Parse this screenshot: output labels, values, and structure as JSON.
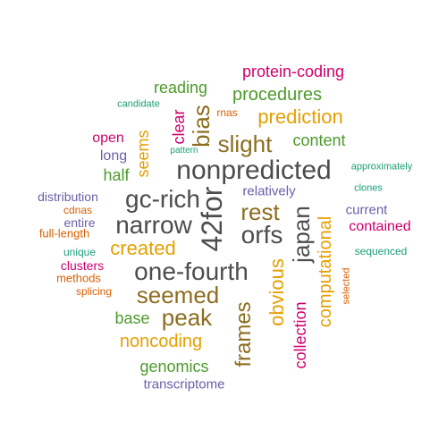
{
  "palette": {
    "dark_gray": "#4d4d4d",
    "brown": "#8c6d1f",
    "gold": "#e69f00",
    "green": "#4d9a2a",
    "magenta": "#d0006f",
    "orange_red": "#d95f02",
    "teal": "#1b9e77",
    "slate_blue": "#6a5fa8"
  },
  "words": [
    {
      "text": "nonpredicted",
      "color": "dark_gray",
      "size": 30
    },
    {
      "text": "42for",
      "color": "dark_gray",
      "size": 32
    },
    {
      "text": "one-fourth",
      "color": "dark_gray",
      "size": 28
    },
    {
      "text": "orfs",
      "color": "dark_gray",
      "size": 28
    },
    {
      "text": "japan",
      "color": "dark_gray",
      "size": 26
    },
    {
      "text": "gc-rich",
      "color": "dark_gray",
      "size": 28
    },
    {
      "text": "narrow",
      "color": "dark_gray",
      "size": 28
    },
    {
      "text": "bias",
      "color": "brown",
      "size": 26
    },
    {
      "text": "slight",
      "color": "brown",
      "size": 26
    },
    {
      "text": "rest",
      "color": "brown",
      "size": 26
    },
    {
      "text": "seemed",
      "color": "brown",
      "size": 26
    },
    {
      "text": "peak",
      "color": "brown",
      "size": 26
    },
    {
      "text": "frames",
      "color": "brown",
      "size": 24
    },
    {
      "text": "prediction",
      "color": "gold",
      "size": 22
    },
    {
      "text": "created",
      "color": "gold",
      "size": 22
    },
    {
      "text": "noncoding",
      "color": "gold",
      "size": 20
    },
    {
      "text": "obvious",
      "color": "gold",
      "size": 22
    },
    {
      "text": "computational",
      "color": "gold",
      "size": 20
    },
    {
      "text": "seems",
      "color": "gold",
      "size": 18
    },
    {
      "text": "procedures",
      "color": "green",
      "size": 20
    },
    {
      "text": "reading",
      "color": "green",
      "size": 18
    },
    {
      "text": "content",
      "color": "green",
      "size": 18
    },
    {
      "text": "half",
      "color": "green",
      "size": 18
    },
    {
      "text": "base",
      "color": "green",
      "size": 18
    },
    {
      "text": "genomics",
      "color": "green",
      "size": 18
    },
    {
      "text": "protein-coding",
      "color": "magenta",
      "size": 18
    },
    {
      "text": "clear",
      "color": "magenta",
      "size": 18
    },
    {
      "text": "open",
      "color": "magenta",
      "size": 16
    },
    {
      "text": "contained",
      "color": "magenta",
      "size": 16
    },
    {
      "text": "collection",
      "color": "magenta",
      "size": 18
    },
    {
      "text": "clusters",
      "color": "magenta",
      "size": 14
    },
    {
      "text": "rnas",
      "color": "orange_red",
      "size": 12
    },
    {
      "text": "cdnas",
      "color": "orange_red",
      "size": 12
    },
    {
      "text": "full-length",
      "color": "orange_red",
      "size": 13
    },
    {
      "text": "methods",
      "color": "orange_red",
      "size": 13
    },
    {
      "text": "splicing",
      "color": "orange_red",
      "size": 12
    },
    {
      "text": "selected",
      "color": "orange_red",
      "size": 11
    },
    {
      "text": "candidate",
      "color": "teal",
      "size": 11
    },
    {
      "text": "pattern",
      "color": "teal",
      "size": 10
    },
    {
      "text": "approximately",
      "color": "teal",
      "size": 11
    },
    {
      "text": "clones",
      "color": "teal",
      "size": 11
    },
    {
      "text": "unique",
      "color": "teal",
      "size": 12
    },
    {
      "text": "sequenced",
      "color": "teal",
      "size": 12
    },
    {
      "text": "long",
      "color": "slate_blue",
      "size": 16
    },
    {
      "text": "relatively",
      "color": "slate_blue",
      "size": 15
    },
    {
      "text": "distribution",
      "color": "slate_blue",
      "size": 14
    },
    {
      "text": "current",
      "color": "slate_blue",
      "size": 15
    },
    {
      "text": "entire",
      "color": "slate_blue",
      "size": 14
    },
    {
      "text": "transcriptome",
      "color": "slate_blue",
      "size": 15
    }
  ]
}
